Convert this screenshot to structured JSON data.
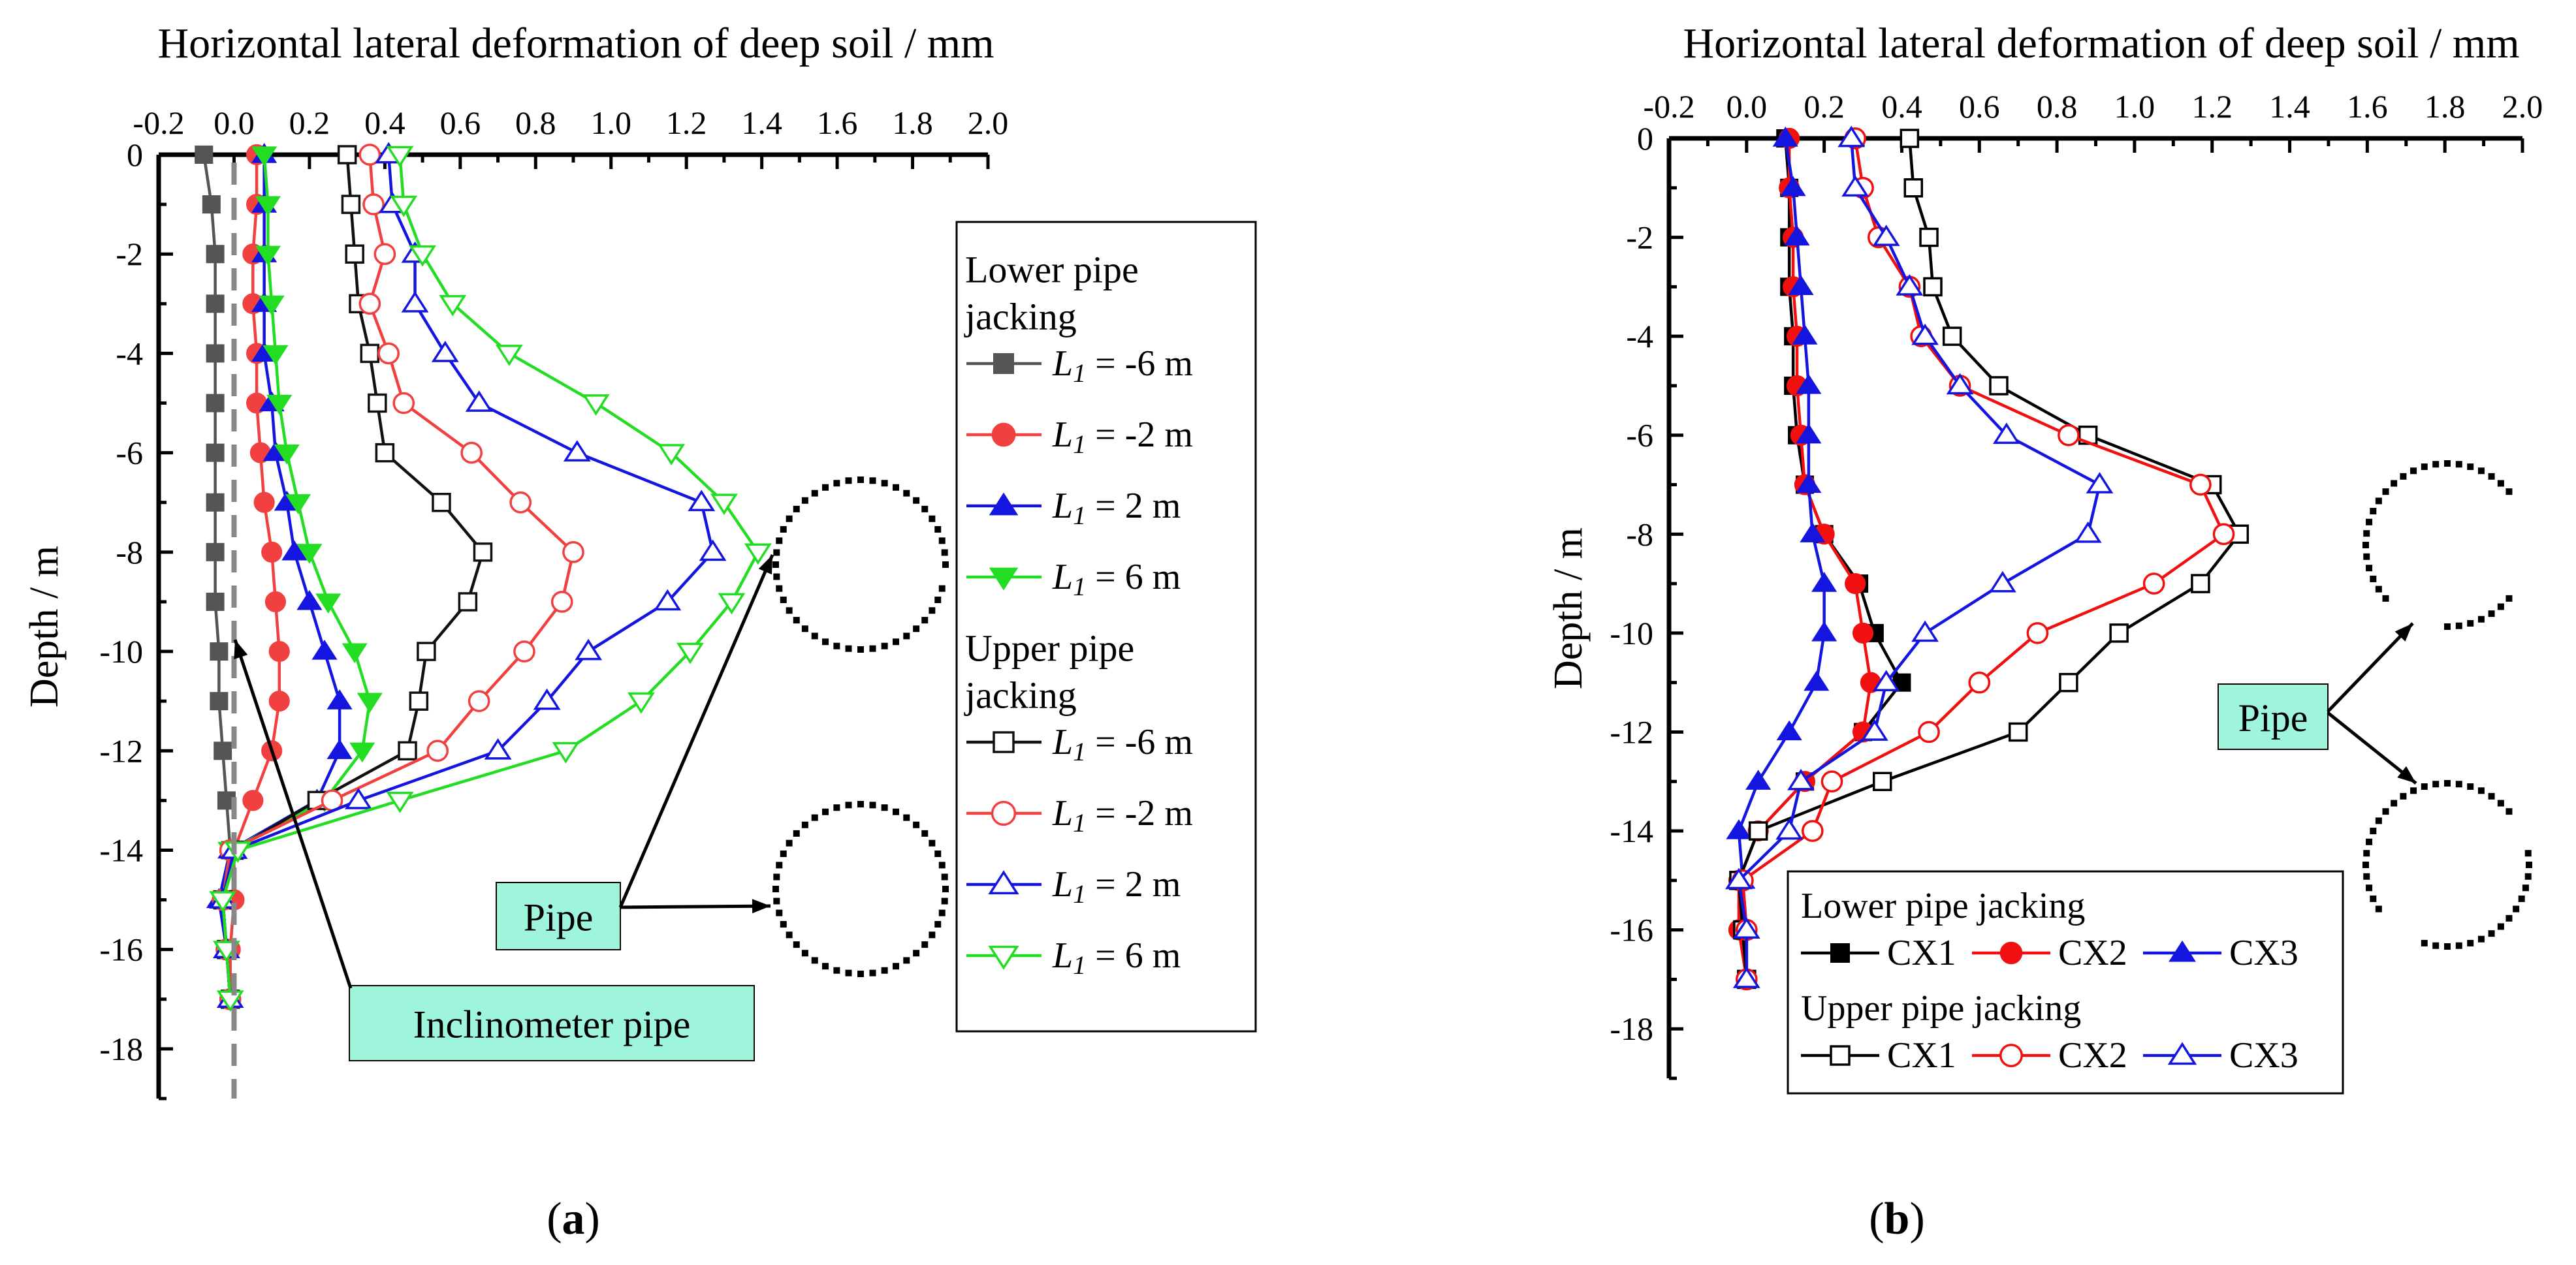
{
  "chart_data": [
    {
      "type": "line",
      "panel_label": "(a)",
      "x_axis_title": "Horizontal lateral deformation of deep soil / mm",
      "y_axis_title": "Depth / m",
      "xlim": [
        -0.2,
        2.0
      ],
      "ylim": [
        -19,
        0
      ],
      "x_ticks": [
        "-0.2",
        "0.0",
        "0.2",
        "0.4",
        "0.6",
        "0.8",
        "1.0",
        "1.2",
        "1.4",
        "1.6",
        "1.8",
        "2.0"
      ],
      "y_ticks": [
        "0",
        "-2",
        "-4",
        "-6",
        "-8",
        "-10",
        "-12",
        "-14",
        "-16",
        "-18"
      ],
      "legend_groups": [
        {
          "title": "Lower pipe jacking",
          "title_lines": [
            "Lower pipe",
            "jacking"
          ],
          "entries": [
            {
              "var": "L",
              "sub": "1",
              "text": " = -6 m"
            },
            {
              "var": "L",
              "sub": "1",
              "text": " = -2 m"
            },
            {
              "var": "L",
              "sub": "1",
              "text": " = 2 m"
            },
            {
              "var": "L",
              "sub": "1",
              "text": " = 6 m"
            }
          ]
        },
        {
          "title": "Upper pipe jacking",
          "title_lines": [
            "Upper pipe",
            "jacking"
          ],
          "entries": [
            {
              "var": "L",
              "sub": "1",
              "text": " = -6 m"
            },
            {
              "var": "L",
              "sub": "1",
              "text": " = -2 m"
            },
            {
              "var": "L",
              "sub": "1",
              "text": " = 2 m"
            },
            {
              "var": "L",
              "sub": "1",
              "text": " = 6 m"
            }
          ]
        }
      ],
      "annotations": {
        "pipe": "Pipe",
        "inclinometer": "Inclinometer pipe"
      },
      "depth": [
        0,
        -1,
        -2,
        -3,
        -4,
        -5,
        -6,
        -7,
        -8,
        -9,
        -10,
        -11,
        -12,
        -13,
        -14,
        -15,
        -16,
        -17
      ],
      "series": [
        {
          "name": "Lower pipe jacking, L1 = -6 m",
          "color": "#555555",
          "marker": "square",
          "filled": true,
          "x": [
            -0.08,
            -0.06,
            -0.05,
            -0.05,
            -0.05,
            -0.05,
            -0.05,
            -0.05,
            -0.05,
            -0.05,
            -0.04,
            -0.04,
            -0.03,
            -0.02,
            -0.01,
            -0.03,
            -0.02,
            -0.01
          ]
        },
        {
          "name": "Lower pipe jacking, L1 = -2 m",
          "color": "#f04040",
          "marker": "circle",
          "filled": true,
          "x": [
            0.06,
            0.06,
            0.05,
            0.05,
            0.06,
            0.06,
            0.07,
            0.08,
            0.1,
            0.11,
            0.12,
            0.12,
            0.1,
            0.05,
            0.0,
            0.0,
            -0.01,
            -0.01
          ]
        },
        {
          "name": "Lower pipe jacking, L1 = 2 m",
          "color": "#1515e0",
          "marker": "triangle-up",
          "filled": true,
          "x": [
            0.08,
            0.08,
            0.08,
            0.08,
            0.08,
            0.1,
            0.11,
            0.14,
            0.16,
            0.2,
            0.24,
            0.28,
            0.28,
            0.22,
            -0.01,
            -0.04,
            -0.02,
            -0.01
          ]
        },
        {
          "name": "Lower pipe jacking, L1 = 6 m",
          "color": "#22dd22",
          "marker": "triangle-down",
          "filled": true,
          "x": [
            0.08,
            0.09,
            0.09,
            0.1,
            0.11,
            0.12,
            0.14,
            0.17,
            0.2,
            0.25,
            0.32,
            0.36,
            0.34,
            0.24,
            -0.01,
            -0.03,
            -0.02,
            -0.01
          ]
        },
        {
          "name": "Upper pipe jacking, L1 = -6 m",
          "color": "#111111",
          "marker": "square",
          "filled": false,
          "x": [
            0.3,
            0.31,
            0.32,
            0.33,
            0.36,
            0.38,
            0.4,
            0.55,
            0.66,
            0.62,
            0.51,
            0.49,
            0.46,
            0.22,
            0.0,
            -0.03,
            -0.02,
            -0.01
          ]
        },
        {
          "name": "Upper pipe jacking, L1 = -2 m",
          "color": "#f04040",
          "marker": "circle",
          "filled": false,
          "x": [
            0.36,
            0.37,
            0.4,
            0.36,
            0.41,
            0.45,
            0.63,
            0.76,
            0.9,
            0.87,
            0.77,
            0.65,
            0.54,
            0.26,
            -0.01,
            -0.03,
            -0.02,
            -0.01
          ]
        },
        {
          "name": "Upper pipe jacking, L1 = 2 m",
          "color": "#1515e0",
          "marker": "triangle-up",
          "filled": false,
          "x": [
            0.41,
            0.42,
            0.48,
            0.48,
            0.56,
            0.65,
            0.91,
            1.24,
            1.27,
            1.15,
            0.94,
            0.83,
            0.7,
            0.33,
            0.0,
            -0.03,
            -0.02,
            -0.01
          ]
        },
        {
          "name": "Upper pipe jacking, L1 = 6 m",
          "color": "#22dd22",
          "marker": "triangle-down",
          "filled": false,
          "x": [
            0.44,
            0.45,
            0.5,
            0.58,
            0.73,
            0.96,
            1.16,
            1.3,
            1.39,
            1.32,
            1.21,
            1.08,
            0.88,
            0.44,
            0.01,
            -0.03,
            -0.02,
            -0.01
          ]
        }
      ]
    },
    {
      "type": "line",
      "panel_label": "(b)",
      "x_axis_title": "Horizontal lateral deformation of deep soil / mm",
      "y_axis_title": "Depth / m",
      "xlim": [
        -0.2,
        2.0
      ],
      "ylim": [
        -19,
        0
      ],
      "x_ticks": [
        "-0.2",
        "0.0",
        "0.2",
        "0.4",
        "0.6",
        "0.8",
        "1.0",
        "1.2",
        "1.4",
        "1.6",
        "1.8",
        "2.0"
      ],
      "y_ticks": [
        "0",
        "-2",
        "-4",
        "-6",
        "-8",
        "-10",
        "-12",
        "-14",
        "-16",
        "-18"
      ],
      "legend_groups": [
        {
          "title": "Lower pipe jacking",
          "entries": [
            "CX1",
            "CX2",
            "CX3"
          ]
        },
        {
          "title": "Upper pipe jacking",
          "entries": [
            "CX1",
            "CX2",
            "CX3"
          ]
        }
      ],
      "annotations": {
        "pipe": "Pipe"
      },
      "depth": [
        0,
        -1,
        -2,
        -3,
        -4,
        -5,
        -6,
        -7,
        -8,
        -9,
        -10,
        -11,
        -12,
        -13,
        -14,
        -15,
        -16,
        -17
      ],
      "series": [
        {
          "name": "Lower pipe jacking, CX1",
          "color": "#000000",
          "marker": "square",
          "filled": true,
          "x": [
            0.1,
            0.11,
            0.11,
            0.11,
            0.12,
            0.12,
            0.13,
            0.15,
            0.2,
            0.29,
            0.33,
            0.4,
            0.3,
            0.15,
            0.03,
            -0.02,
            -0.01,
            0.0
          ]
        },
        {
          "name": "Lower pipe jacking, CX2",
          "color": "#f01010",
          "marker": "circle",
          "filled": true,
          "x": [
            0.11,
            0.11,
            0.12,
            0.12,
            0.13,
            0.13,
            0.14,
            0.15,
            0.2,
            0.28,
            0.3,
            0.32,
            0.3,
            0.15,
            0.03,
            -0.02,
            -0.02,
            0.0
          ]
        },
        {
          "name": "Lower pipe jacking, CX3",
          "color": "#1515e0",
          "marker": "triangle-up",
          "filled": true,
          "x": [
            0.1,
            0.12,
            0.13,
            0.14,
            0.15,
            0.16,
            0.16,
            0.16,
            0.17,
            0.2,
            0.2,
            0.18,
            0.11,
            0.03,
            -0.02,
            -0.01,
            0.0,
            0.0
          ]
        },
        {
          "name": "Upper pipe jacking, CX1",
          "color": "#000000",
          "marker": "square",
          "filled": false,
          "x": [
            0.42,
            0.43,
            0.47,
            0.48,
            0.53,
            0.65,
            0.88,
            1.2,
            1.27,
            1.17,
            0.96,
            0.83,
            0.7,
            0.35,
            0.03,
            -0.02,
            -0.01,
            0.0
          ]
        },
        {
          "name": "Upper pipe jacking, CX2",
          "color": "#f01010",
          "marker": "circle",
          "filled": false,
          "x": [
            0.28,
            0.3,
            0.34,
            0.42,
            0.45,
            0.55,
            0.83,
            1.17,
            1.23,
            1.05,
            0.75,
            0.6,
            0.47,
            0.22,
            0.17,
            -0.01,
            0.0,
            0.0
          ]
        },
        {
          "name": "Upper pipe jacking, CX3",
          "color": "#1515e0",
          "marker": "triangle-up",
          "filled": false,
          "x": [
            0.27,
            0.28,
            0.36,
            0.42,
            0.46,
            0.55,
            0.67,
            0.91,
            0.88,
            0.66,
            0.46,
            0.36,
            0.33,
            0.14,
            0.11,
            -0.02,
            0.0,
            0.0
          ]
        }
      ]
    }
  ]
}
